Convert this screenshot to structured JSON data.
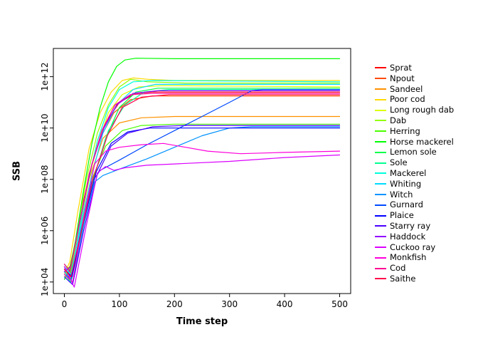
{
  "chart_data": {
    "type": "line",
    "title": "",
    "xlabel": "Time step",
    "ylabel": "SSB",
    "y_scale": "log10",
    "grid": false,
    "legend_position": "right",
    "xlim": [
      -20,
      520
    ],
    "ylim_log10": [
      3.55,
      13.1
    ],
    "x_ticks": [
      0,
      100,
      200,
      300,
      400,
      500
    ],
    "y_ticks": [
      {
        "log10": 4,
        "label": "1e+04"
      },
      {
        "log10": 6,
        "label": "1e+06"
      },
      {
        "log10": 8,
        "label": "1e+08"
      },
      {
        "log10": 10,
        "label": "1e+10"
      },
      {
        "log10": 12,
        "label": "1e+12"
      }
    ],
    "series": [
      {
        "name": "Sprat",
        "color": "#FF0000",
        "points": [
          [
            0,
            4.6
          ],
          [
            10,
            4.2
          ],
          [
            20,
            5.2
          ],
          [
            35,
            7.2
          ],
          [
            55,
            9.0
          ],
          [
            75,
            10.2
          ],
          [
            100,
            11.0
          ],
          [
            130,
            11.35
          ],
          [
            160,
            11.4
          ],
          [
            250,
            11.4
          ],
          [
            500,
            11.4
          ]
        ]
      },
      {
        "name": "Npout",
        "color": "#FF4900",
        "points": [
          [
            0,
            4.4
          ],
          [
            10,
            4.6
          ],
          [
            25,
            6.0
          ],
          [
            45,
            8.2
          ],
          [
            65,
            9.6
          ],
          [
            90,
            10.6
          ],
          [
            120,
            11.1
          ],
          [
            160,
            11.25
          ],
          [
            250,
            11.25
          ],
          [
            500,
            11.25
          ]
        ]
      },
      {
        "name": "Sandeel",
        "color": "#FF9200",
        "points": [
          [
            0,
            4.5
          ],
          [
            12,
            4.1
          ],
          [
            25,
            5.8
          ],
          [
            45,
            8.0
          ],
          [
            70,
            9.6
          ],
          [
            100,
            10.2
          ],
          [
            140,
            10.4
          ],
          [
            200,
            10.45
          ],
          [
            500,
            10.45
          ]
        ]
      },
      {
        "name": "Poor cod",
        "color": "#FFDB00",
        "points": [
          [
            0,
            4.3
          ],
          [
            10,
            4.8
          ],
          [
            25,
            6.8
          ],
          [
            45,
            9.2
          ],
          [
            65,
            10.6
          ],
          [
            85,
            11.4
          ],
          [
            105,
            11.85
          ],
          [
            125,
            11.95
          ],
          [
            150,
            11.9
          ],
          [
            200,
            11.85
          ],
          [
            500,
            11.85
          ]
        ]
      },
      {
        "name": "Long rough dab",
        "color": "#DBFF00",
        "points": [
          [
            0,
            4.2
          ],
          [
            12,
            4.5
          ],
          [
            30,
            6.5
          ],
          [
            55,
            9.0
          ],
          [
            80,
            10.6
          ],
          [
            105,
            11.3
          ],
          [
            135,
            11.6
          ],
          [
            180,
            11.65
          ],
          [
            500,
            11.6
          ]
        ]
      },
      {
        "name": "Dab",
        "color": "#92FF00",
        "points": [
          [
            0,
            4.4
          ],
          [
            10,
            4.3
          ],
          [
            22,
            5.8
          ],
          [
            40,
            8.0
          ],
          [
            60,
            9.8
          ],
          [
            80,
            10.9
          ],
          [
            100,
            11.6
          ],
          [
            120,
            11.9
          ],
          [
            150,
            11.8
          ],
          [
            220,
            11.75
          ],
          [
            500,
            11.75
          ]
        ]
      },
      {
        "name": "Herring",
        "color": "#49FF00",
        "points": [
          [
            0,
            4.7
          ],
          [
            12,
            4.4
          ],
          [
            28,
            6.0
          ],
          [
            50,
            8.0
          ],
          [
            75,
            9.3
          ],
          [
            105,
            9.9
          ],
          [
            140,
            10.1
          ],
          [
            200,
            10.15
          ],
          [
            500,
            10.15
          ]
        ]
      },
      {
        "name": "Horse mackerel",
        "color": "#00FF00",
        "points": [
          [
            0,
            4.1
          ],
          [
            10,
            4.5
          ],
          [
            20,
            5.6
          ],
          [
            35,
            7.6
          ],
          [
            50,
            9.4
          ],
          [
            65,
            10.8
          ],
          [
            80,
            11.8
          ],
          [
            95,
            12.4
          ],
          [
            110,
            12.65
          ],
          [
            130,
            12.72
          ],
          [
            200,
            12.7
          ],
          [
            500,
            12.7
          ]
        ]
      },
      {
        "name": "Lemon sole",
        "color": "#00FF49",
        "points": [
          [
            0,
            4.3
          ],
          [
            12,
            4.0
          ],
          [
            28,
            5.6
          ],
          [
            50,
            7.8
          ],
          [
            75,
            9.6
          ],
          [
            100,
            10.8
          ],
          [
            130,
            11.4
          ],
          [
            170,
            11.55
          ],
          [
            250,
            11.55
          ],
          [
            500,
            11.55
          ]
        ]
      },
      {
        "name": "Sole",
        "color": "#00FF92",
        "points": [
          [
            0,
            4.5
          ],
          [
            14,
            4.2
          ],
          [
            30,
            5.9
          ],
          [
            55,
            8.2
          ],
          [
            80,
            9.9
          ],
          [
            110,
            10.9
          ],
          [
            145,
            11.4
          ],
          [
            190,
            11.5
          ],
          [
            500,
            11.5
          ]
        ]
      },
      {
        "name": "Mackerel",
        "color": "#00FFDB",
        "points": [
          [
            0,
            4.2
          ],
          [
            10,
            4.0
          ],
          [
            22,
            5.4
          ],
          [
            40,
            7.6
          ],
          [
            60,
            9.5
          ],
          [
            80,
            10.8
          ],
          [
            100,
            11.5
          ],
          [
            125,
            11.8
          ],
          [
            160,
            11.85
          ],
          [
            500,
            11.8
          ]
        ]
      },
      {
        "name": "Whiting",
        "color": "#00DBFF",
        "points": [
          [
            0,
            4.6
          ],
          [
            12,
            4.3
          ],
          [
            26,
            5.8
          ],
          [
            48,
            8.0
          ],
          [
            70,
            9.8
          ],
          [
            95,
            10.9
          ],
          [
            125,
            11.5
          ],
          [
            165,
            11.7
          ],
          [
            500,
            11.7
          ]
        ]
      },
      {
        "name": "Witch",
        "color": "#0092FF",
        "points": [
          [
            0,
            4.4
          ],
          [
            15,
            4.0
          ],
          [
            35,
            6.2
          ],
          [
            55,
            7.9
          ],
          [
            70,
            8.15
          ],
          [
            100,
            8.4
          ],
          [
            150,
            8.8
          ],
          [
            200,
            9.25
          ],
          [
            250,
            9.7
          ],
          [
            300,
            10.0
          ],
          [
            340,
            10.05
          ],
          [
            500,
            10.05
          ]
        ]
      },
      {
        "name": "Gurnard",
        "color": "#0049FF",
        "points": [
          [
            0,
            4.3
          ],
          [
            12,
            4.1
          ],
          [
            30,
            6.0
          ],
          [
            50,
            7.9
          ],
          [
            65,
            8.35
          ],
          [
            100,
            8.75
          ],
          [
            150,
            9.35
          ],
          [
            200,
            9.9
          ],
          [
            250,
            10.45
          ],
          [
            300,
            11.0
          ],
          [
            340,
            11.45
          ],
          [
            360,
            11.5
          ],
          [
            500,
            11.5
          ]
        ]
      },
      {
        "name": "Plaice",
        "color": "#0000FF",
        "points": [
          [
            0,
            4.5
          ],
          [
            14,
            4.2
          ],
          [
            32,
            6.1
          ],
          [
            58,
            8.3
          ],
          [
            85,
            9.4
          ],
          [
            115,
            9.85
          ],
          [
            155,
            10.0
          ],
          [
            220,
            10.0
          ],
          [
            500,
            10.0
          ]
        ]
      },
      {
        "name": "Starry ray",
        "color": "#4900FF",
        "points": [
          [
            0,
            4.2
          ],
          [
            15,
            3.9
          ],
          [
            35,
            6.0
          ],
          [
            60,
            8.2
          ],
          [
            85,
            9.3
          ],
          [
            115,
            9.8
          ],
          [
            160,
            10.05
          ],
          [
            220,
            10.1
          ],
          [
            500,
            10.1
          ]
        ]
      },
      {
        "name": "Haddock",
        "color": "#9200FF",
        "points": [
          [
            0,
            4.4
          ],
          [
            12,
            4.6
          ],
          [
            28,
            6.4
          ],
          [
            50,
            8.6
          ],
          [
            72,
            10.0
          ],
          [
            95,
            10.9
          ],
          [
            125,
            11.35
          ],
          [
            170,
            11.45
          ],
          [
            500,
            11.45
          ]
        ]
      },
      {
        "name": "Cuckoo ray",
        "color": "#DB00FF",
        "points": [
          [
            0,
            4.6
          ],
          [
            18,
            3.8
          ],
          [
            40,
            6.2
          ],
          [
            60,
            8.25
          ],
          [
            75,
            8.5
          ],
          [
            90,
            8.35
          ],
          [
            110,
            8.45
          ],
          [
            150,
            8.55
          ],
          [
            200,
            8.6
          ],
          [
            300,
            8.7
          ],
          [
            400,
            8.85
          ],
          [
            500,
            8.95
          ]
        ]
      },
      {
        "name": "Monkfish",
        "color": "#FF00DB",
        "points": [
          [
            0,
            4.3
          ],
          [
            15,
            4.0
          ],
          [
            35,
            6.5
          ],
          [
            55,
            8.6
          ],
          [
            75,
            9.1
          ],
          [
            100,
            9.25
          ],
          [
            140,
            9.35
          ],
          [
            180,
            9.4
          ],
          [
            220,
            9.25
          ],
          [
            260,
            9.1
          ],
          [
            320,
            9.0
          ],
          [
            400,
            9.05
          ],
          [
            500,
            9.1
          ]
        ]
      },
      {
        "name": "Cod",
        "color": "#FF0092",
        "points": [
          [
            0,
            4.7
          ],
          [
            10,
            4.4
          ],
          [
            24,
            5.9
          ],
          [
            45,
            8.2
          ],
          [
            68,
            9.9
          ],
          [
            92,
            10.9
          ],
          [
            120,
            11.3
          ],
          [
            160,
            11.35
          ],
          [
            500,
            11.35
          ]
        ]
      },
      {
        "name": "Saithe",
        "color": "#FF0049",
        "points": [
          [
            0,
            4.5
          ],
          [
            12,
            4.2
          ],
          [
            28,
            5.7
          ],
          [
            52,
            8.0
          ],
          [
            78,
            9.7
          ],
          [
            105,
            10.8
          ],
          [
            140,
            11.2
          ],
          [
            190,
            11.3
          ],
          [
            500,
            11.3
          ]
        ]
      }
    ]
  }
}
